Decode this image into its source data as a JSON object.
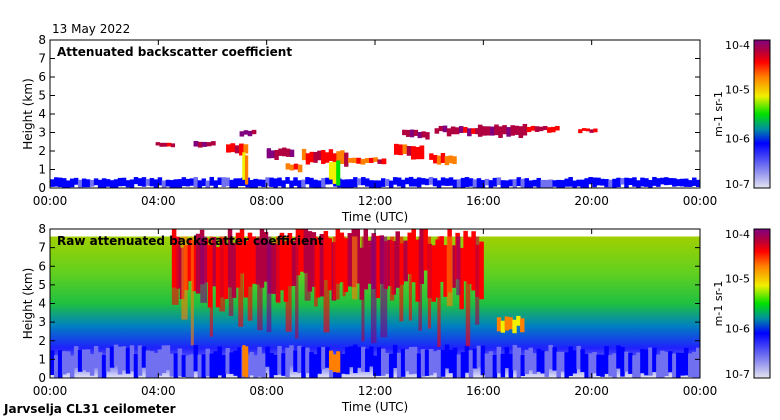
{
  "date": "13 May 2022",
  "footer": "Jarvselja CL31 ceilometer",
  "chart_data": [
    {
      "type": "heatmap",
      "title": "Attenuated backscatter coefficient",
      "xlabel": "Time (UTC)",
      "ylabel": "Height (km)",
      "xlim": [
        0,
        24
      ],
      "ylim": [
        0,
        8
      ],
      "x_ticks": [
        "00:00",
        "04:00",
        "08:00",
        "12:00",
        "16:00",
        "20:00",
        "00:00"
      ],
      "y_ticks": [
        "0",
        "1",
        "2",
        "3",
        "4",
        "5",
        "6",
        "7",
        "8"
      ],
      "colorbar": {
        "label": "m-1 sr-1",
        "ticks": [
          "10-7",
          "10-6",
          "10-5",
          "10-4"
        ],
        "scale": "log",
        "range": [
          1e-07,
          0.0001
        ]
      },
      "layers": [
        {
          "t0": 0,
          "t1": 24,
          "h0": 0,
          "h1": 0.5,
          "level": 0.2
        },
        {
          "t0": 3.9,
          "t1": 4.6,
          "h0": 2.25,
          "h1": 2.45,
          "level": 0.85
        },
        {
          "t0": 5.3,
          "t1": 6.1,
          "h0": 2.2,
          "h1": 2.5,
          "level": 0.9
        },
        {
          "t0": 6.5,
          "t1": 7.3,
          "h0": 1.8,
          "h1": 2.4,
          "level": 0.8
        },
        {
          "t0": 7.0,
          "t1": 7.6,
          "h0": 2.8,
          "h1": 3.1,
          "level": 0.9
        },
        {
          "t0": 7.1,
          "t1": 7.3,
          "h0": 0,
          "h1": 1.8,
          "level": 0.6
        },
        {
          "t0": 8.0,
          "t1": 9.0,
          "h0": 1.6,
          "h1": 2.1,
          "level": 0.9
        },
        {
          "t0": 8.7,
          "t1": 9.3,
          "h0": 0.9,
          "h1": 1.3,
          "level": 0.7
        },
        {
          "t0": 9.3,
          "t1": 11.0,
          "h0": 1.3,
          "h1": 2.0,
          "level": 0.8
        },
        {
          "t0": 10.3,
          "t1": 10.7,
          "h0": 0,
          "h1": 1.3,
          "level": 0.55
        },
        {
          "t0": 11.0,
          "t1": 12.4,
          "h0": 1.3,
          "h1": 1.6,
          "level": 0.8
        },
        {
          "t0": 12.7,
          "t1": 13.8,
          "h0": 1.6,
          "h1": 2.3,
          "level": 0.8
        },
        {
          "t0": 13.0,
          "t1": 14.0,
          "h0": 2.7,
          "h1": 3.1,
          "level": 0.9
        },
        {
          "t0": 14.0,
          "t1": 15.0,
          "h0": 1.3,
          "h1": 1.8,
          "level": 0.75
        },
        {
          "t0": 14.2,
          "t1": 16.0,
          "h0": 2.9,
          "h1": 3.3,
          "level": 0.9
        },
        {
          "t0": 15.8,
          "t1": 17.6,
          "h0": 2.8,
          "h1": 3.4,
          "level": 0.9
        },
        {
          "t0": 17.6,
          "t1": 18.8,
          "h0": 3.0,
          "h1": 3.3,
          "level": 0.85
        },
        {
          "t0": 19.5,
          "t1": 20.2,
          "h0": 3.0,
          "h1": 3.2,
          "level": 0.85
        }
      ]
    },
    {
      "type": "heatmap",
      "title": "Raw attenuated backscatter coefficient",
      "xlabel": "Time (UTC)",
      "ylabel": "Height (km)",
      "xlim": [
        0,
        24
      ],
      "ylim": [
        0,
        8
      ],
      "x_ticks": [
        "00:00",
        "04:00",
        "08:00",
        "12:00",
        "16:00",
        "20:00",
        "00:00"
      ],
      "y_ticks": [
        "0",
        "1",
        "2",
        "3",
        "4",
        "5",
        "6",
        "7",
        "8"
      ],
      "colorbar": {
        "label": "m-1 sr-1",
        "ticks": [
          "10-7",
          "10-6",
          "10-5",
          "10-4"
        ],
        "scale": "log",
        "range": [
          1e-07,
          0.0001
        ]
      },
      "layers": [
        {
          "t0": 0,
          "t1": 24,
          "h0": 0,
          "h1": 1.5,
          "level": 0.15
        },
        {
          "t0": 4.5,
          "t1": 16,
          "h0": 4.5,
          "h1": 7.6,
          "level": 0.85
        },
        {
          "t0": 16.5,
          "t1": 17.5,
          "h0": 2.5,
          "h1": 3.2,
          "level": 0.65
        },
        {
          "t0": 7.1,
          "t1": 7.3,
          "h0": 0,
          "h1": 1.8,
          "level": 0.7
        },
        {
          "t0": 10.3,
          "t1": 10.7,
          "h0": 0,
          "h1": 1.3,
          "level": 0.7
        }
      ]
    }
  ]
}
